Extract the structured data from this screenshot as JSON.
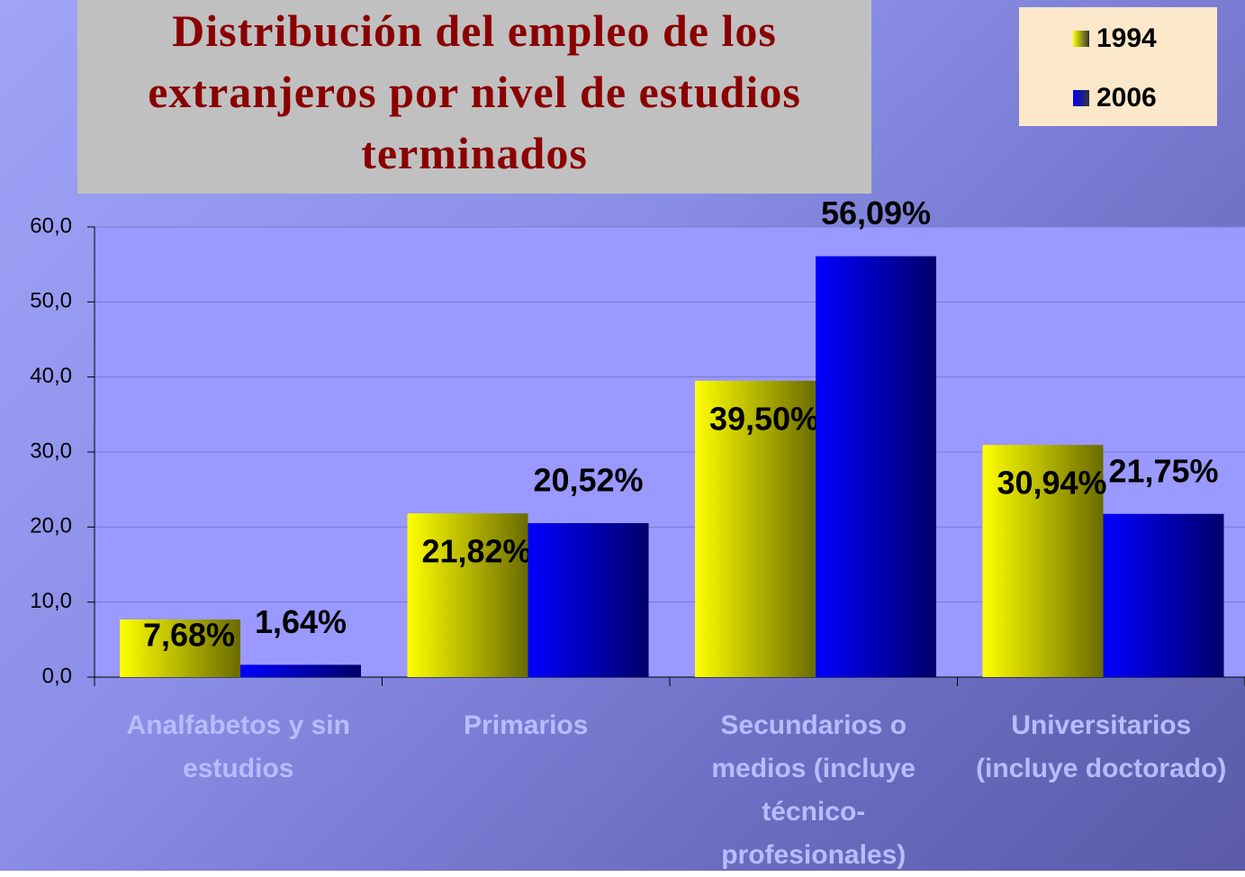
{
  "chart_data": {
    "type": "bar",
    "title": "Distribución del empleo de los extranjeros por nivel de estudios terminados",
    "categories": [
      "Analfabetos y sin estudios",
      "Primarios",
      "Secundarios o medios (incluye técnico-profesionales)",
      "Universitarios (incluye doctorado)"
    ],
    "series": [
      {
        "name": "1994",
        "color": "#ffff00",
        "values": [
          7.68,
          21.82,
          39.5,
          30.94
        ],
        "value_labels": [
          "7,68%",
          "21,82%",
          "39,50%",
          "30,94%"
        ]
      },
      {
        "name": "2006",
        "color": "#0000ff",
        "values": [
          1.64,
          20.52,
          56.09,
          21.75
        ],
        "value_labels": [
          "1,64%",
          "20,52%",
          "56,09%",
          "21,75%"
        ]
      }
    ],
    "ylim": [
      0,
      60
    ],
    "yticks": [
      {
        "value": 0,
        "label": "0,0"
      },
      {
        "value": 10,
        "label": "10,0"
      },
      {
        "value": 20,
        "label": "20,0"
      },
      {
        "value": 30,
        "label": "30,0"
      },
      {
        "value": 40,
        "label": "40,0"
      },
      {
        "value": 50,
        "label": "50,0"
      },
      {
        "value": 60,
        "label": "60,0"
      }
    ],
    "grid": true,
    "legend": "upper right"
  }
}
